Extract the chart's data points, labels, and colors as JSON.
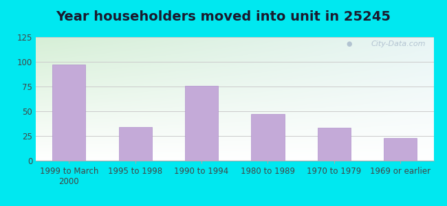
{
  "title": "Year householders moved into unit in 25245",
  "categories": [
    "1999 to March\n2000",
    "1995 to 1998",
    "1990 to 1994",
    "1980 to 1989",
    "1970 to 1979",
    "1969 or earlier"
  ],
  "values": [
    97,
    34,
    76,
    47,
    33,
    23
  ],
  "bar_color": "#c4aad8",
  "bar_edge_color": "#b090cc",
  "ylim": [
    0,
    125
  ],
  "yticks": [
    0,
    25,
    50,
    75,
    100,
    125
  ],
  "background_outer": "#00e8f0",
  "background_inner_topleft": "#d6efd6",
  "background_inner_topright": "#e8f5f5",
  "background_inner_bottomleft": "#ffffff",
  "background_inner_bottomright": "#ffffff",
  "title_fontsize": 14,
  "tick_fontsize": 8.5,
  "watermark": "City-Data.com"
}
